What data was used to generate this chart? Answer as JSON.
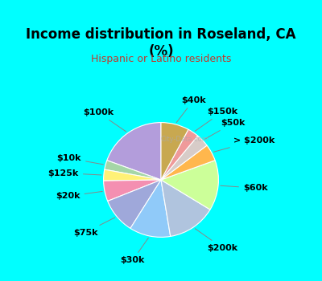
{
  "title": "Income distribution in Roseland, CA\n(%)",
  "subtitle": "Hispanic or Latino residents",
  "title_color": "#000000",
  "subtitle_color": "#c0392b",
  "background_top": "#00ffff",
  "background_chart": "#e8f5e9",
  "labels": [
    "$100k",
    "$10k",
    "$125k",
    "$20k",
    "$75k",
    "$30k",
    "$200k",
    "$60k",
    "> $200k",
    "$50k",
    "$150k",
    "$40k"
  ],
  "values": [
    18.5,
    2.5,
    3.0,
    5.5,
    9.5,
    11.0,
    13.0,
    13.5,
    4.5,
    3.5,
    3.0,
    7.5
  ],
  "colors": [
    "#b39ddb",
    "#a5d6a7",
    "#fff176",
    "#f48fb1",
    "#9fa8da",
    "#90caf9",
    "#b0c4de",
    "#ccff99",
    "#ffb74d",
    "#d7ccc8",
    "#ef9a9a",
    "#c8a850"
  ],
  "wedge_edge_color": "#ffffff",
  "label_fontsize": 8,
  "figsize": [
    4.0,
    3.5
  ],
  "dpi": 100
}
